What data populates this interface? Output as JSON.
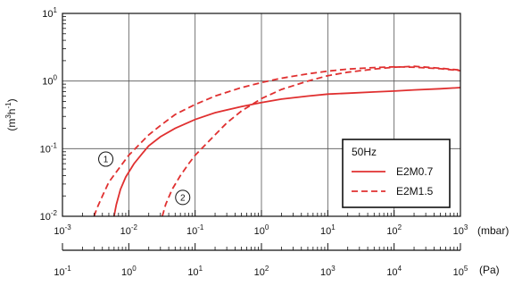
{
  "chart_data": {
    "type": "line",
    "title": "",
    "x_axis": {
      "unit": "(mbar)",
      "scale": "log",
      "range": [
        0.001,
        1000
      ],
      "tick_values": [
        0.001,
        0.01,
        0.1,
        1,
        10,
        100,
        1000
      ],
      "tick_labels": [
        {
          "base": "10",
          "exp": "-3"
        },
        {
          "base": "10",
          "exp": "-2"
        },
        {
          "base": "10",
          "exp": "-1"
        },
        {
          "base": "10",
          "exp": "0"
        },
        {
          "base": "10",
          "exp": "1"
        },
        {
          "base": "10",
          "exp": "2"
        },
        {
          "base": "10",
          "exp": "3"
        }
      ]
    },
    "x2_axis": {
      "unit": "(Pa)",
      "scale": "log",
      "range": [
        0.1,
        100000
      ],
      "tick_values": [
        0.1,
        1,
        10,
        100,
        1000,
        10000,
        100000
      ],
      "tick_labels": [
        {
          "base": "10",
          "exp": "-1"
        },
        {
          "base": "10",
          "exp": "0"
        },
        {
          "base": "10",
          "exp": "1"
        },
        {
          "base": "10",
          "exp": "2"
        },
        {
          "base": "10",
          "exp": "3"
        },
        {
          "base": "10",
          "exp": "4"
        },
        {
          "base": "10",
          "exp": "5"
        }
      ]
    },
    "y_axis": {
      "label": {
        "pre": "(m",
        "sup1": "3",
        "mid": "h",
        "sup2": "-1",
        "post": ")"
      },
      "scale": "log",
      "range": [
        0.01,
        10
      ],
      "tick_values": [
        0.01,
        0.1,
        1,
        10
      ],
      "tick_labels": [
        {
          "base": "10",
          "exp": "-2"
        },
        {
          "base": "10",
          "exp": "-1"
        },
        {
          "base": "10",
          "exp": "0"
        },
        {
          "base": "10",
          "exp": "1"
        }
      ]
    },
    "grid": true,
    "legend": {
      "title": "50Hz",
      "placement": "center-right"
    },
    "series": [
      {
        "name": "E2M0.7",
        "style": "solid",
        "color": "#e03030",
        "points": [
          [
            0.006,
            0.01
          ],
          [
            0.0065,
            0.015
          ],
          [
            0.0075,
            0.025
          ],
          [
            0.009,
            0.038
          ],
          [
            0.012,
            0.06
          ],
          [
            0.016,
            0.085
          ],
          [
            0.02,
            0.11
          ],
          [
            0.03,
            0.15
          ],
          [
            0.05,
            0.2
          ],
          [
            0.1,
            0.27
          ],
          [
            0.2,
            0.34
          ],
          [
            0.5,
            0.42
          ],
          [
            1,
            0.48
          ],
          [
            2,
            0.54
          ],
          [
            5,
            0.6
          ],
          [
            10,
            0.64
          ],
          [
            20,
            0.66
          ],
          [
            50,
            0.69
          ],
          [
            100,
            0.71
          ],
          [
            200,
            0.74
          ],
          [
            500,
            0.77
          ],
          [
            1000,
            0.8
          ]
        ]
      },
      {
        "name": "E2M1.5",
        "style": "dashed",
        "color": "#e03030",
        "points": [
          [
            0.003,
            0.01
          ],
          [
            0.0033,
            0.013
          ],
          [
            0.004,
            0.02
          ],
          [
            0.005,
            0.032
          ],
          [
            0.007,
            0.05
          ],
          [
            0.01,
            0.08
          ],
          [
            0.015,
            0.12
          ],
          [
            0.02,
            0.16
          ],
          [
            0.03,
            0.22
          ],
          [
            0.05,
            0.32
          ],
          [
            0.1,
            0.45
          ],
          [
            0.2,
            0.6
          ],
          [
            0.5,
            0.8
          ],
          [
            1,
            0.95
          ],
          [
            2,
            1.1
          ],
          [
            5,
            1.28
          ],
          [
            10,
            1.4
          ],
          [
            20,
            1.5
          ],
          [
            50,
            1.58
          ],
          [
            100,
            1.62
          ],
          [
            200,
            1.6
          ],
          [
            500,
            1.52
          ],
          [
            1000,
            1.42
          ]
        ]
      },
      {
        "name": "",
        "style": "dashed",
        "color": "#e03030",
        "points": [
          [
            0.032,
            0.01
          ],
          [
            0.036,
            0.015
          ],
          [
            0.045,
            0.025
          ],
          [
            0.06,
            0.04
          ],
          [
            0.08,
            0.06
          ],
          [
            0.1,
            0.08
          ],
          [
            0.15,
            0.12
          ],
          [
            0.2,
            0.16
          ],
          [
            0.3,
            0.24
          ],
          [
            0.5,
            0.36
          ],
          [
            1,
            0.55
          ],
          [
            2,
            0.75
          ],
          [
            5,
            1.0
          ],
          [
            10,
            1.2
          ],
          [
            20,
            1.35
          ],
          [
            50,
            1.5
          ],
          [
            100,
            1.6
          ],
          [
            200,
            1.65
          ],
          [
            500,
            1.55
          ],
          [
            1000,
            1.45
          ]
        ]
      }
    ],
    "annotations": [
      {
        "text": "1",
        "x": 0.0045,
        "y": 0.07
      },
      {
        "text": "2",
        "x": 0.065,
        "y": 0.019
      }
    ]
  }
}
